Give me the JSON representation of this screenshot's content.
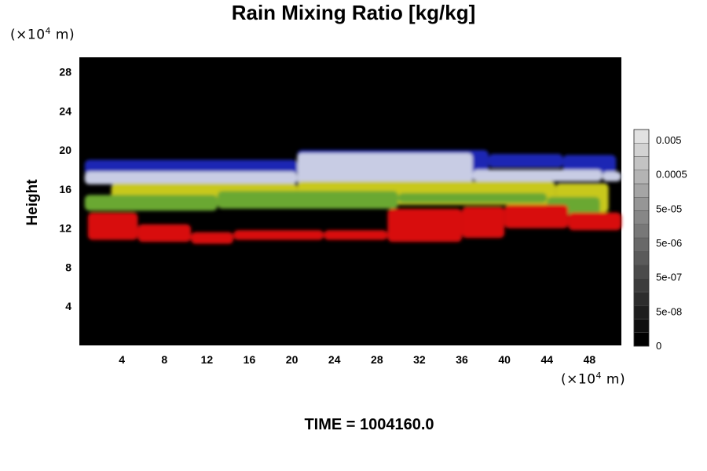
{
  "chart_data": {
    "type": "heatmap",
    "title": "Rain Mixing Ratio [kg/kg]",
    "ylabel": "Height",
    "xlabel": "",
    "y_unit": {
      "prefix": "(×10",
      "exp": "4",
      "suffix": " m)"
    },
    "x_unit": {
      "prefix": "(×10",
      "exp": "4",
      "suffix": " m)"
    },
    "x_ticks": [
      "4",
      "8",
      "12",
      "16",
      "20",
      "24",
      "28",
      "32",
      "36",
      "40",
      "44",
      "48"
    ],
    "y_ticks": [
      "4",
      "8",
      "12",
      "16",
      "20",
      "24",
      "28"
    ],
    "xlim": [
      0,
      51
    ],
    "ylim": [
      0,
      29.5
    ],
    "colorbar": {
      "ticks": [
        "0.005",
        "0.0005",
        "5e-05",
        "5e-06",
        "5e-07",
        "5e-08",
        "0"
      ],
      "levels": 16
    },
    "bands": [
      {
        "name": "blue",
        "color": "#1a28b4",
        "segments": [
          [
            0.5,
            17.4,
            19.0
          ],
          [
            20.5,
            17.0,
            20.0
          ],
          [
            38.5,
            18.2,
            19.6
          ],
          [
            45.5,
            17.6,
            19.5
          ]
        ]
      },
      {
        "name": "lightblue",
        "color": "#c8cce4",
        "segments": [
          [
            0.5,
            16.5,
            17.8
          ],
          [
            20.5,
            16.4,
            19.7
          ],
          [
            37.0,
            16.8,
            18.0
          ],
          [
            49.2,
            16.8,
            17.8
          ]
        ]
      },
      {
        "name": "yellow",
        "color": "#c8c81e",
        "segments": [
          [
            3.0,
            14.4,
            16.6
          ],
          [
            20.5,
            14.4,
            16.8
          ],
          [
            44.8,
            13.6,
            16.6
          ]
        ]
      },
      {
        "name": "green",
        "color": "#6aa832",
        "segments": [
          [
            0.5,
            13.8,
            15.4
          ],
          [
            13.0,
            14.0,
            15.8
          ],
          [
            30.0,
            14.6,
            15.6
          ],
          [
            44.0,
            13.4,
            15.2
          ]
        ]
      },
      {
        "name": "red",
        "color": "#d81010",
        "segments": [
          [
            0.8,
            10.8,
            13.6
          ],
          [
            5.5,
            10.6,
            12.4
          ],
          [
            10.5,
            10.4,
            11.6
          ],
          [
            14.5,
            10.8,
            11.8
          ],
          [
            23.0,
            10.8,
            11.8
          ],
          [
            29.0,
            10.6,
            14.0
          ],
          [
            36.0,
            11.0,
            14.2
          ],
          [
            40.0,
            12.0,
            14.4
          ],
          [
            46.0,
            11.8,
            13.6
          ]
        ]
      }
    ],
    "time_label": "TIME = 1004160.0"
  }
}
